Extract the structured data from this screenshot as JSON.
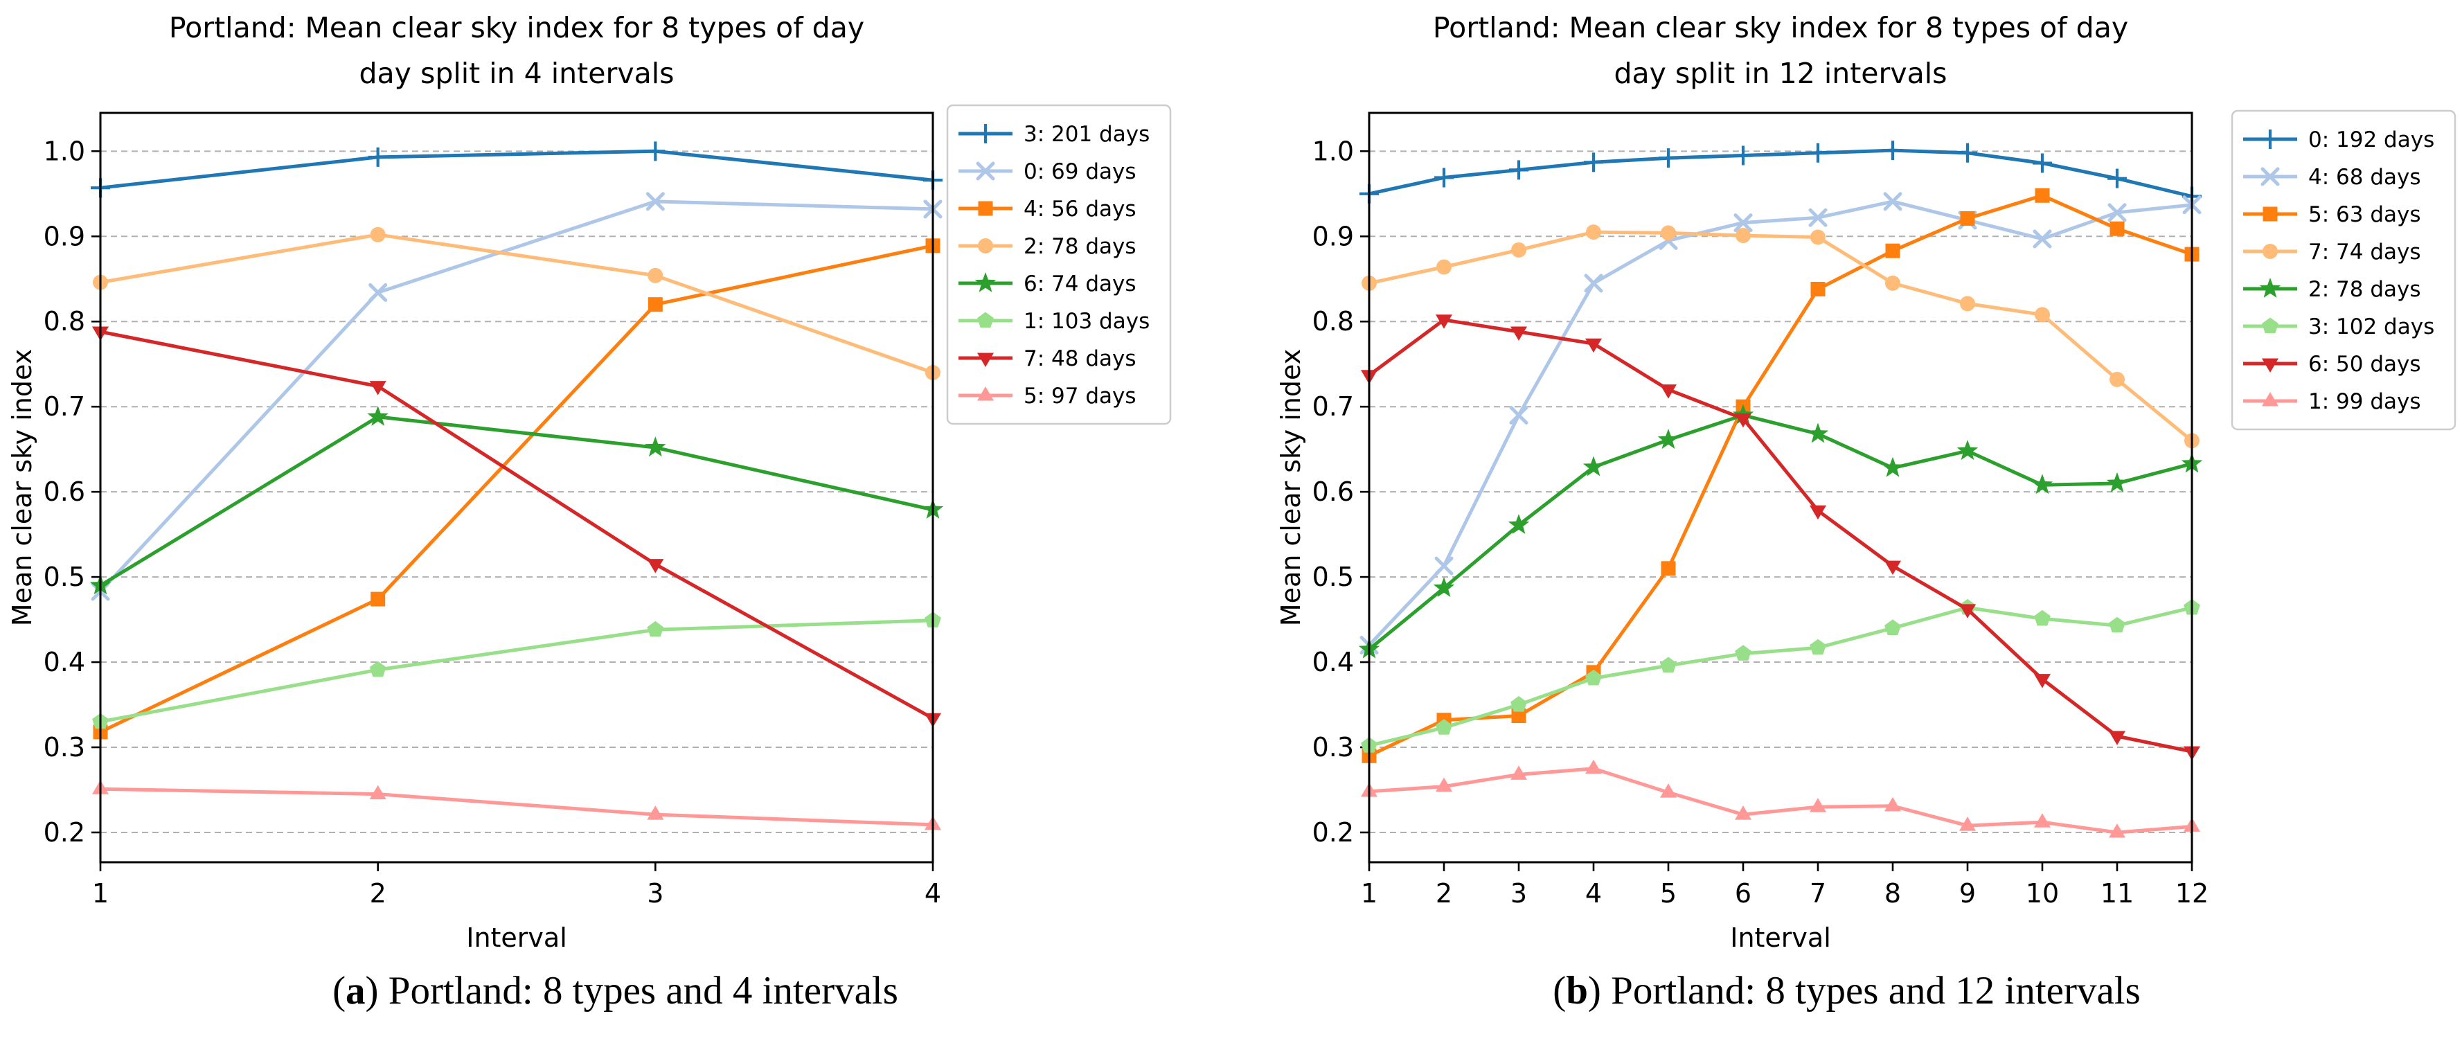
{
  "page_background": "#ffffff",
  "chart_data": [
    {
      "type": "line",
      "title_line1": "Portland: Mean clear sky index for 8 types of day",
      "title_line2": "day split in 4 intervals",
      "xlabel": "Interval",
      "ylabel": "Mean clear sky index",
      "x": [
        1,
        2,
        3,
        4
      ],
      "xlim": [
        1,
        4
      ],
      "ylim": [
        0.165,
        1.045
      ],
      "yticks": [
        0.2,
        0.3,
        0.4,
        0.5,
        0.6,
        0.7,
        0.8,
        0.9,
        1.0
      ],
      "grid": "horizontal-dashed",
      "grid_color": "#b0b0b0",
      "legend_position": "outside-right",
      "series": [
        {
          "label": "3: 201 days",
          "marker": "plus",
          "color": "#1f77b4",
          "values": [
            0.957,
            0.993,
            1.0,
            0.966
          ]
        },
        {
          "label": "0: 69 days",
          "marker": "x",
          "color": "#aec7e8",
          "values": [
            0.483,
            0.834,
            0.941,
            0.932
          ]
        },
        {
          "label": "4: 56 days",
          "marker": "square",
          "color": "#ff7f0e",
          "values": [
            0.318,
            0.474,
            0.82,
            0.889
          ]
        },
        {
          "label": "2: 78 days",
          "marker": "circle",
          "color": "#ffbb78",
          "values": [
            0.846,
            0.902,
            0.854,
            0.74
          ]
        },
        {
          "label": "6: 74 days",
          "marker": "star",
          "color": "#2ca02c",
          "values": [
            0.49,
            0.688,
            0.652,
            0.579
          ]
        },
        {
          "label": "1: 103 days",
          "marker": "pentagon",
          "color": "#98df8a",
          "values": [
            0.33,
            0.391,
            0.438,
            0.449
          ]
        },
        {
          "label": "7: 48 days",
          "marker": "triangle-down",
          "color": "#d62728",
          "values": [
            0.788,
            0.724,
            0.515,
            0.334
          ]
        },
        {
          "label": "5: 97 days",
          "marker": "triangle-up",
          "color": "#ff9896",
          "values": [
            0.251,
            0.245,
            0.221,
            0.209
          ]
        }
      ]
    },
    {
      "type": "line",
      "title_line1": "Portland: Mean clear sky index for 8 types of day",
      "title_line2": "day split in 12 intervals",
      "xlabel": "Interval",
      "ylabel": "Mean clear sky index",
      "x": [
        1,
        2,
        3,
        4,
        5,
        6,
        7,
        8,
        9,
        10,
        11,
        12
      ],
      "xlim": [
        1,
        12
      ],
      "ylim": [
        0.165,
        1.045
      ],
      "yticks": [
        0.2,
        0.3,
        0.4,
        0.5,
        0.6,
        0.7,
        0.8,
        0.9,
        1.0
      ],
      "grid": "horizontal-dashed",
      "grid_color": "#b0b0b0",
      "legend_position": "outside-right",
      "series": [
        {
          "label": "0: 192 days",
          "marker": "plus",
          "color": "#1f77b4",
          "values": [
            0.95,
            0.969,
            0.978,
            0.987,
            0.992,
            0.995,
            0.998,
            1.001,
            0.998,
            0.986,
            0.968,
            0.947
          ]
        },
        {
          "label": "4: 68 days",
          "marker": "x",
          "color": "#aec7e8",
          "values": [
            0.42,
            0.513,
            0.69,
            0.845,
            0.895,
            0.916,
            0.922,
            0.941,
            0.919,
            0.897,
            0.928,
            0.937
          ]
        },
        {
          "label": "5: 63 days",
          "marker": "square",
          "color": "#ff7f0e",
          "values": [
            0.29,
            0.332,
            0.337,
            0.388,
            0.51,
            0.7,
            0.838,
            0.883,
            0.921,
            0.948,
            0.909,
            0.879
          ]
        },
        {
          "label": "7: 74 days",
          "marker": "circle",
          "color": "#ffbb78",
          "values": [
            0.845,
            0.864,
            0.884,
            0.905,
            0.904,
            0.901,
            0.899,
            0.845,
            0.821,
            0.808,
            0.732,
            0.66
          ]
        },
        {
          "label": "2: 78 days",
          "marker": "star",
          "color": "#2ca02c",
          "values": [
            0.415,
            0.487,
            0.561,
            0.629,
            0.661,
            0.69,
            0.668,
            0.628,
            0.648,
            0.608,
            0.61,
            0.633
          ]
        },
        {
          "label": "3: 102 days",
          "marker": "pentagon",
          "color": "#98df8a",
          "values": [
            0.302,
            0.323,
            0.35,
            0.381,
            0.396,
            0.41,
            0.417,
            0.44,
            0.464,
            0.451,
            0.443,
            0.464
          ]
        },
        {
          "label": "6: 50 days",
          "marker": "triangle-down",
          "color": "#d62728",
          "values": [
            0.737,
            0.802,
            0.788,
            0.774,
            0.72,
            0.686,
            0.578,
            0.513,
            0.462,
            0.38,
            0.313,
            0.295
          ]
        },
        {
          "label": "1: 99 days",
          "marker": "triangle-up",
          "color": "#ff9896",
          "values": [
            0.248,
            0.254,
            0.268,
            0.275,
            0.247,
            0.221,
            0.23,
            0.231,
            0.208,
            0.212,
            0.2,
            0.207
          ]
        }
      ]
    }
  ],
  "captions": [
    {
      "open": "(",
      "letter": "a",
      "close": ")",
      "text": " Portland: 8 types and 4 intervals"
    },
    {
      "open": "(",
      "letter": "b",
      "close": ")",
      "text": " Portland: 8 types and 12 intervals"
    }
  ]
}
